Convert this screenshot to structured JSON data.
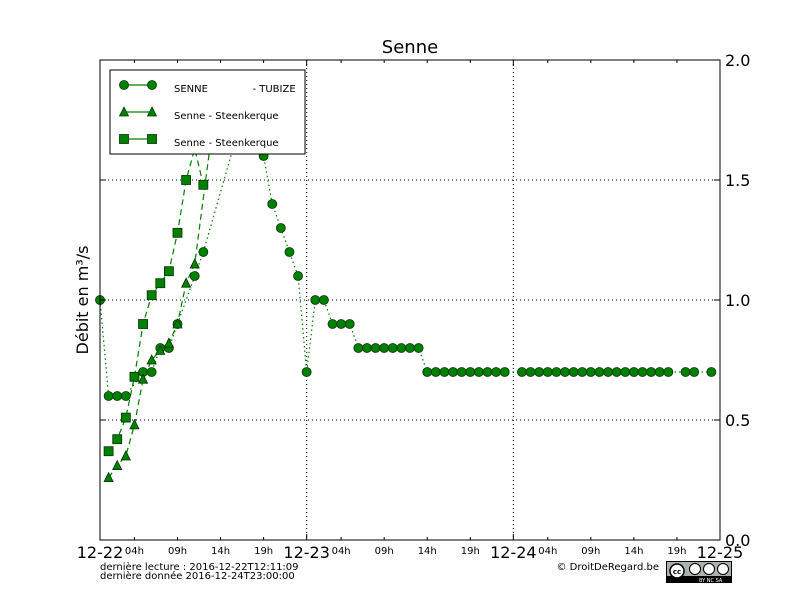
{
  "chart_data": {
    "type": "line",
    "title": "Senne",
    "ylabel": "Débit en m³/s",
    "xlabel": "",
    "ylim": [
      0,
      2.0
    ],
    "y_ticks": [
      "0.0",
      "0.5",
      "1.0",
      "1.5",
      "2.0"
    ],
    "x_range_hours": [
      0,
      72
    ],
    "x_major_ticks": [
      {
        "hour": 0,
        "label": "12-22"
      },
      {
        "hour": 24,
        "label": "12-23"
      },
      {
        "hour": 48,
        "label": "12-24"
      },
      {
        "hour": 72,
        "label": "12-25"
      }
    ],
    "x_minor_ticks": [
      {
        "hour": 4,
        "label": "04h"
      },
      {
        "hour": 9,
        "label": "09h"
      },
      {
        "hour": 14,
        "label": "14h"
      },
      {
        "hour": 19,
        "label": "19h"
      },
      {
        "hour": 28,
        "label": "04h"
      },
      {
        "hour": 33,
        "label": "09h"
      },
      {
        "hour": 38,
        "label": "14h"
      },
      {
        "hour": 43,
        "label": "19h"
      },
      {
        "hour": 52,
        "label": "04h"
      },
      {
        "hour": 57,
        "label": "09h"
      },
      {
        "hour": 62,
        "label": "14h"
      },
      {
        "hour": 67,
        "label": "19h"
      }
    ],
    "grid": true,
    "legend_position": "top-left",
    "series": [
      {
        "name": "SENNE              - TUBIZE",
        "marker": "circle",
        "line": "dotted",
        "color": "#008000",
        "points": [
          [
            0,
            1.0
          ],
          [
            1,
            0.6
          ],
          [
            2,
            0.6
          ],
          [
            3,
            0.6
          ],
          [
            5,
            0.7
          ],
          [
            6,
            0.7
          ],
          [
            7,
            0.8
          ],
          [
            8,
            0.8
          ],
          [
            9,
            0.9
          ],
          [
            11,
            1.1
          ],
          [
            12,
            1.2
          ],
          [
            16,
            1.7
          ],
          [
            19,
            1.6
          ],
          [
            20,
            1.4
          ],
          [
            21,
            1.3
          ],
          [
            22,
            1.2
          ],
          [
            23,
            1.1
          ],
          [
            24,
            0.7
          ],
          [
            25,
            1.0
          ],
          [
            26,
            1.0
          ],
          [
            27,
            0.9
          ],
          [
            28,
            0.9
          ],
          [
            29,
            0.9
          ],
          [
            30,
            0.8
          ],
          [
            31,
            0.8
          ],
          [
            32,
            0.8
          ],
          [
            33,
            0.8
          ],
          [
            34,
            0.8
          ],
          [
            35,
            0.8
          ],
          [
            36,
            0.8
          ],
          [
            37,
            0.8
          ],
          [
            38,
            0.7
          ],
          [
            39,
            0.7
          ],
          [
            40,
            0.7
          ],
          [
            41,
            0.7
          ],
          [
            42,
            0.7
          ],
          [
            43,
            0.7
          ],
          [
            44,
            0.7
          ],
          [
            45,
            0.7
          ],
          [
            46,
            0.7
          ],
          [
            47,
            0.7
          ],
          [
            49,
            0.7
          ],
          [
            50,
            0.7
          ],
          [
            51,
            0.7
          ],
          [
            52,
            0.7
          ],
          [
            53,
            0.7
          ],
          [
            54,
            0.7
          ],
          [
            55,
            0.7
          ],
          [
            56,
            0.7
          ],
          [
            57,
            0.7
          ],
          [
            58,
            0.7
          ],
          [
            59,
            0.7
          ],
          [
            60,
            0.7
          ],
          [
            61,
            0.7
          ],
          [
            62,
            0.7
          ],
          [
            63,
            0.7
          ],
          [
            64,
            0.7
          ],
          [
            65,
            0.7
          ],
          [
            66,
            0.7
          ],
          [
            68,
            0.7
          ],
          [
            69,
            0.7
          ],
          [
            71,
            0.7
          ]
        ]
      },
      {
        "name": "Senne - Steenkerque",
        "marker": "triangle",
        "line": "dashed",
        "color": "#008000",
        "points": [
          [
            1,
            0.26
          ],
          [
            2,
            0.31
          ],
          [
            3,
            0.35
          ],
          [
            4,
            0.48
          ],
          [
            5,
            0.67
          ],
          [
            6,
            0.75
          ],
          [
            7,
            0.79
          ],
          [
            8,
            0.82
          ],
          [
            9,
            0.9
          ],
          [
            10,
            1.07
          ],
          [
            11,
            1.15
          ],
          [
            13,
            1.7
          ]
        ]
      },
      {
        "name": "Senne - Steenkerque",
        "marker": "square",
        "line": "dashed",
        "color": "#008000",
        "points": [
          [
            1,
            0.37
          ],
          [
            2,
            0.42
          ],
          [
            3,
            0.51
          ],
          [
            4,
            0.68
          ],
          [
            5,
            0.9
          ],
          [
            6,
            1.02
          ],
          [
            7,
            1.07
          ],
          [
            8,
            1.12
          ],
          [
            9,
            1.28
          ],
          [
            10,
            1.5
          ],
          [
            11,
            1.63
          ],
          [
            12,
            1.48
          ]
        ]
      }
    ]
  },
  "footer": {
    "last_read": "dernière lecture : 2016-12-22T12:11:09",
    "last_data": "dernière donnée  2016-12-24T23:00:00",
    "copyright": "© DroitDeRegard.be",
    "license_badge": "CC BY NC SA"
  }
}
